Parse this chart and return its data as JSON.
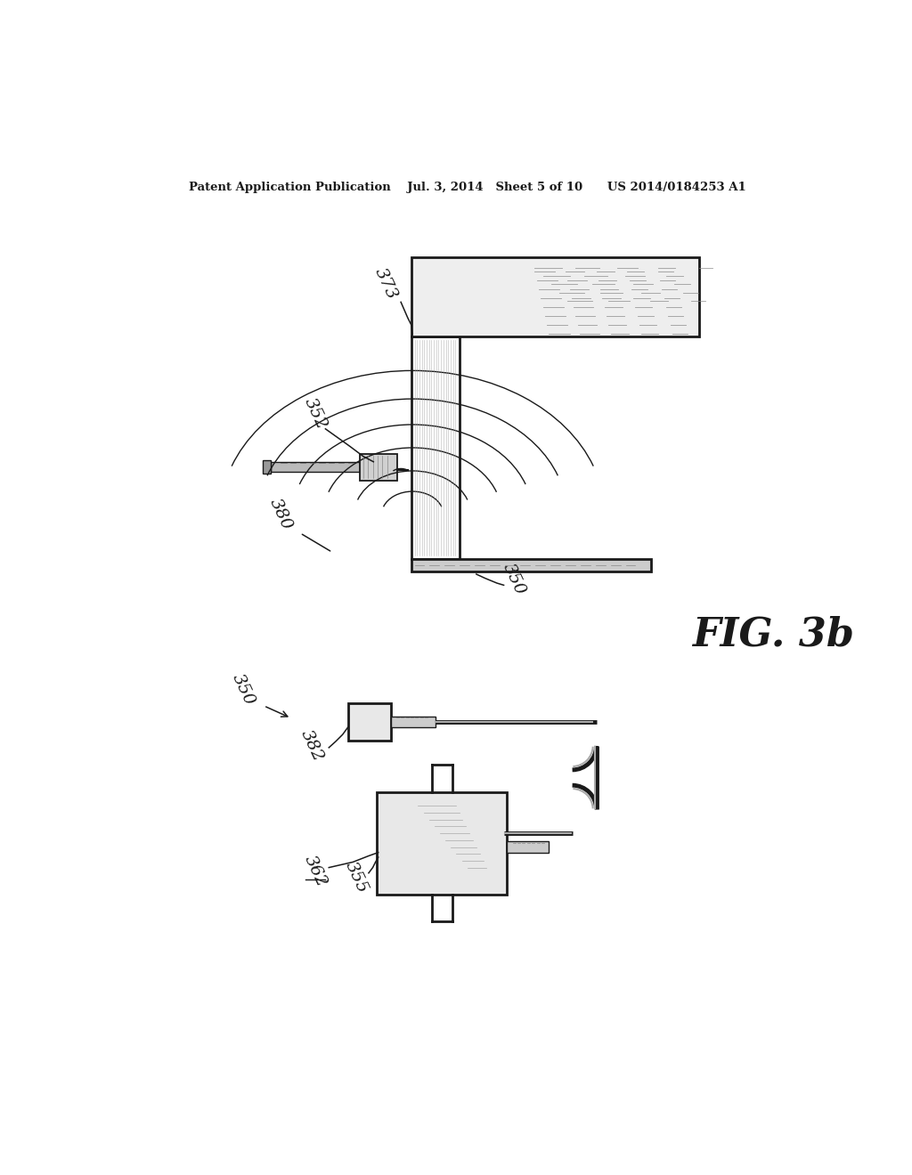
{
  "bg_color": "#ffffff",
  "line_color": "#1a1a1a",
  "gray_light": "#d8d8d8",
  "gray_med": "#b0b0b0",
  "header": "Patent Application Publication    Jul. 3, 2014   Sheet 5 of 10      US 2014/0184253 A1",
  "fig_label": "FIG. 3b",
  "label_373": "373",
  "label_352": "352",
  "label_380": "380",
  "label_350a": "350",
  "label_350b": "350",
  "label_382": "382",
  "label_362": "362",
  "label_355": "355"
}
